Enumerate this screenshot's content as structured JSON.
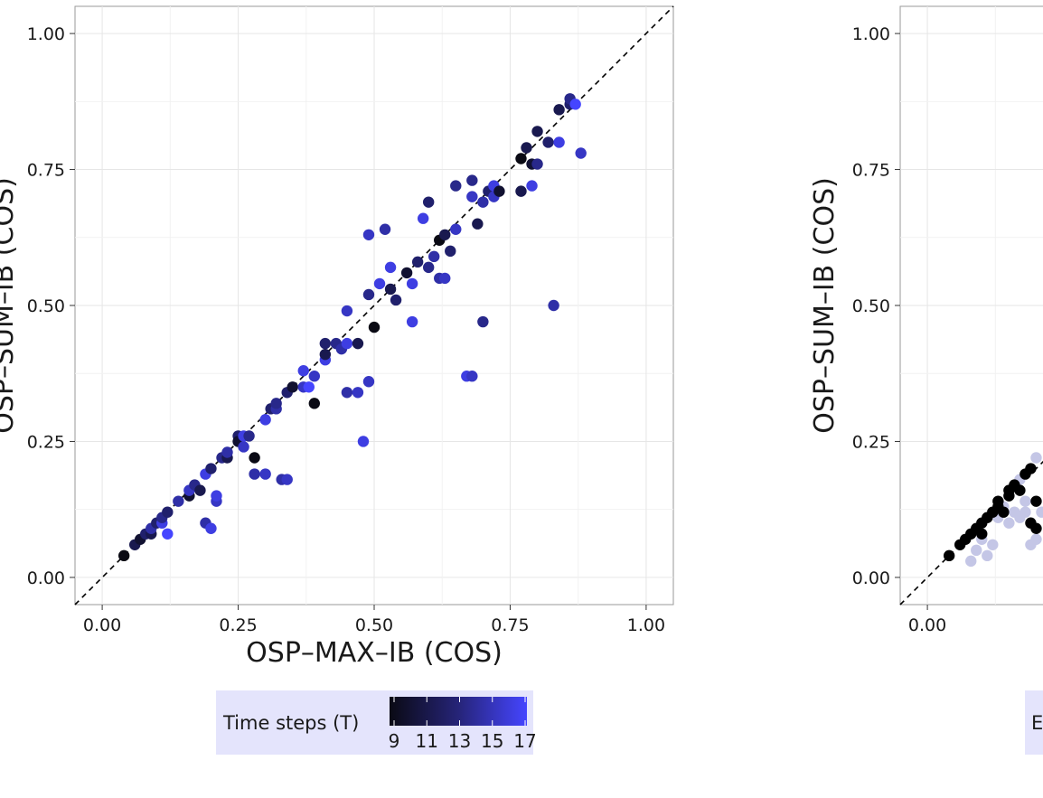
{
  "chart_data": [
    {
      "type": "scatter",
      "xlabel": "OSP–MAX–IB (COS)",
      "ylabel": "OSP–SUM–IB (COS)",
      "xlim": [
        -0.05,
        1.05
      ],
      "ylim": [
        -0.05,
        1.05
      ],
      "xticks": [
        "0.00",
        "0.25",
        "0.50",
        "0.75",
        "1.00"
      ],
      "yticks": [
        "0.00",
        "0.25",
        "0.50",
        "0.75",
        "1.00"
      ],
      "grid": true,
      "reference_line": "y = x (dashed)",
      "legend": {
        "title": "Time steps (T)",
        "placement": "bottom",
        "type": "colorbar",
        "ticks": [
          "9",
          "11",
          "13",
          "15",
          "17"
        ],
        "range": [
          9,
          17
        ],
        "color_low": "#0a0a14",
        "color_high": "#4545ff"
      },
      "points": [
        {
          "x": 0.04,
          "y": 0.04,
          "t": 9
        },
        {
          "x": 0.06,
          "y": 0.06,
          "t": 11
        },
        {
          "x": 0.07,
          "y": 0.07,
          "t": 10
        },
        {
          "x": 0.08,
          "y": 0.08,
          "t": 12
        },
        {
          "x": 0.09,
          "y": 0.08,
          "t": 11
        },
        {
          "x": 0.09,
          "y": 0.09,
          "t": 14
        },
        {
          "x": 0.1,
          "y": 0.1,
          "t": 12
        },
        {
          "x": 0.11,
          "y": 0.1,
          "t": 16
        },
        {
          "x": 0.11,
          "y": 0.11,
          "t": 13
        },
        {
          "x": 0.12,
          "y": 0.08,
          "t": 17
        },
        {
          "x": 0.12,
          "y": 0.12,
          "t": 12
        },
        {
          "x": 0.14,
          "y": 0.14,
          "t": 14
        },
        {
          "x": 0.16,
          "y": 0.15,
          "t": 10
        },
        {
          "x": 0.16,
          "y": 0.16,
          "t": 15
        },
        {
          "x": 0.17,
          "y": 0.17,
          "t": 13
        },
        {
          "x": 0.18,
          "y": 0.16,
          "t": 11
        },
        {
          "x": 0.19,
          "y": 0.1,
          "t": 14
        },
        {
          "x": 0.19,
          "y": 0.19,
          "t": 16
        },
        {
          "x": 0.2,
          "y": 0.09,
          "t": 16
        },
        {
          "x": 0.2,
          "y": 0.2,
          "t": 12
        },
        {
          "x": 0.21,
          "y": 0.14,
          "t": 15
        },
        {
          "x": 0.21,
          "y": 0.15,
          "t": 16
        },
        {
          "x": 0.22,
          "y": 0.22,
          "t": 13
        },
        {
          "x": 0.23,
          "y": 0.22,
          "t": 11
        },
        {
          "x": 0.23,
          "y": 0.23,
          "t": 14
        },
        {
          "x": 0.25,
          "y": 0.26,
          "t": 12
        },
        {
          "x": 0.25,
          "y": 0.25,
          "t": 10
        },
        {
          "x": 0.26,
          "y": 0.24,
          "t": 15
        },
        {
          "x": 0.26,
          "y": 0.26,
          "t": 16
        },
        {
          "x": 0.27,
          "y": 0.26,
          "t": 13
        },
        {
          "x": 0.28,
          "y": 0.22,
          "t": 9
        },
        {
          "x": 0.28,
          "y": 0.19,
          "t": 14
        },
        {
          "x": 0.3,
          "y": 0.19,
          "t": 15
        },
        {
          "x": 0.3,
          "y": 0.29,
          "t": 16
        },
        {
          "x": 0.31,
          "y": 0.31,
          "t": 12
        },
        {
          "x": 0.32,
          "y": 0.31,
          "t": 14
        },
        {
          "x": 0.32,
          "y": 0.32,
          "t": 13
        },
        {
          "x": 0.33,
          "y": 0.18,
          "t": 14
        },
        {
          "x": 0.34,
          "y": 0.18,
          "t": 15
        },
        {
          "x": 0.34,
          "y": 0.34,
          "t": 12
        },
        {
          "x": 0.35,
          "y": 0.35,
          "t": 10
        },
        {
          "x": 0.37,
          "y": 0.35,
          "t": 15
        },
        {
          "x": 0.37,
          "y": 0.38,
          "t": 16
        },
        {
          "x": 0.38,
          "y": 0.35,
          "t": 17
        },
        {
          "x": 0.39,
          "y": 0.32,
          "t": 9
        },
        {
          "x": 0.39,
          "y": 0.37,
          "t": 15
        },
        {
          "x": 0.41,
          "y": 0.4,
          "t": 16
        },
        {
          "x": 0.41,
          "y": 0.41,
          "t": 11
        },
        {
          "x": 0.41,
          "y": 0.43,
          "t": 12
        },
        {
          "x": 0.43,
          "y": 0.43,
          "t": 13
        },
        {
          "x": 0.44,
          "y": 0.42,
          "t": 14
        },
        {
          "x": 0.45,
          "y": 0.43,
          "t": 16
        },
        {
          "x": 0.45,
          "y": 0.34,
          "t": 14
        },
        {
          "x": 0.45,
          "y": 0.49,
          "t": 15
        },
        {
          "x": 0.47,
          "y": 0.43,
          "t": 11
        },
        {
          "x": 0.47,
          "y": 0.34,
          "t": 15
        },
        {
          "x": 0.48,
          "y": 0.25,
          "t": 16
        },
        {
          "x": 0.49,
          "y": 0.36,
          "t": 15
        },
        {
          "x": 0.49,
          "y": 0.52,
          "t": 13
        },
        {
          "x": 0.49,
          "y": 0.63,
          "t": 15
        },
        {
          "x": 0.5,
          "y": 0.46,
          "t": 9
        },
        {
          "x": 0.51,
          "y": 0.54,
          "t": 16
        },
        {
          "x": 0.52,
          "y": 0.64,
          "t": 14
        },
        {
          "x": 0.53,
          "y": 0.57,
          "t": 16
        },
        {
          "x": 0.53,
          "y": 0.53,
          "t": 11
        },
        {
          "x": 0.54,
          "y": 0.51,
          "t": 12
        },
        {
          "x": 0.56,
          "y": 0.56,
          "t": 10
        },
        {
          "x": 0.57,
          "y": 0.54,
          "t": 16
        },
        {
          "x": 0.57,
          "y": 0.47,
          "t": 16
        },
        {
          "x": 0.58,
          "y": 0.58,
          "t": 12
        },
        {
          "x": 0.59,
          "y": 0.66,
          "t": 16
        },
        {
          "x": 0.6,
          "y": 0.69,
          "t": 12
        },
        {
          "x": 0.6,
          "y": 0.57,
          "t": 13
        },
        {
          "x": 0.61,
          "y": 0.59,
          "t": 14
        },
        {
          "x": 0.62,
          "y": 0.55,
          "t": 14
        },
        {
          "x": 0.62,
          "y": 0.62,
          "t": 9
        },
        {
          "x": 0.63,
          "y": 0.63,
          "t": 11
        },
        {
          "x": 0.63,
          "y": 0.55,
          "t": 15
        },
        {
          "x": 0.64,
          "y": 0.6,
          "t": 12
        },
        {
          "x": 0.65,
          "y": 0.64,
          "t": 15
        },
        {
          "x": 0.65,
          "y": 0.72,
          "t": 13
        },
        {
          "x": 0.67,
          "y": 0.37,
          "t": 16
        },
        {
          "x": 0.68,
          "y": 0.37,
          "t": 15
        },
        {
          "x": 0.68,
          "y": 0.7,
          "t": 15
        },
        {
          "x": 0.68,
          "y": 0.73,
          "t": 13
        },
        {
          "x": 0.69,
          "y": 0.65,
          "t": 11
        },
        {
          "x": 0.7,
          "y": 0.69,
          "t": 14
        },
        {
          "x": 0.7,
          "y": 0.47,
          "t": 13
        },
        {
          "x": 0.71,
          "y": 0.71,
          "t": 12
        },
        {
          "x": 0.72,
          "y": 0.7,
          "t": 15
        },
        {
          "x": 0.72,
          "y": 0.72,
          "t": 16
        },
        {
          "x": 0.73,
          "y": 0.71,
          "t": 10
        },
        {
          "x": 0.77,
          "y": 0.71,
          "t": 11
        },
        {
          "x": 0.77,
          "y": 0.77,
          "t": 9
        },
        {
          "x": 0.78,
          "y": 0.79,
          "t": 11
        },
        {
          "x": 0.79,
          "y": 0.76,
          "t": 10
        },
        {
          "x": 0.79,
          "y": 0.72,
          "t": 16
        },
        {
          "x": 0.8,
          "y": 0.76,
          "t": 13
        },
        {
          "x": 0.8,
          "y": 0.82,
          "t": 11
        },
        {
          "x": 0.82,
          "y": 0.8,
          "t": 12
        },
        {
          "x": 0.83,
          "y": 0.5,
          "t": 14
        },
        {
          "x": 0.84,
          "y": 0.86,
          "t": 11
        },
        {
          "x": 0.84,
          "y": 0.8,
          "t": 16
        },
        {
          "x": 0.86,
          "y": 0.87,
          "t": 12
        },
        {
          "x": 0.86,
          "y": 0.88,
          "t": 13
        },
        {
          "x": 0.87,
          "y": 0.87,
          "t": 17
        },
        {
          "x": 0.88,
          "y": 0.78,
          "t": 15
        }
      ]
    },
    {
      "type": "scatter",
      "ylabel": "OSP–SUM–IB (COS)",
      "xlim": [
        -0.05,
        1.05
      ],
      "ylim": [
        -0.05,
        1.05
      ],
      "xticks": [
        "0.00"
      ],
      "yticks": [
        "0.00",
        "0.25",
        "0.50",
        "0.75",
        "1.00"
      ],
      "grid": true,
      "reference_line": "y = x (dashed)",
      "legend": {
        "placement": "bottom",
        "visible_label": "E"
      },
      "points_dark": [
        {
          "x": 0.04,
          "y": 0.04
        },
        {
          "x": 0.06,
          "y": 0.06
        },
        {
          "x": 0.07,
          "y": 0.07
        },
        {
          "x": 0.08,
          "y": 0.08
        },
        {
          "x": 0.09,
          "y": 0.09
        },
        {
          "x": 0.1,
          "y": 0.1
        },
        {
          "x": 0.1,
          "y": 0.08
        },
        {
          "x": 0.11,
          "y": 0.11
        },
        {
          "x": 0.12,
          "y": 0.12
        },
        {
          "x": 0.13,
          "y": 0.13
        },
        {
          "x": 0.13,
          "y": 0.14
        },
        {
          "x": 0.14,
          "y": 0.12
        },
        {
          "x": 0.15,
          "y": 0.15
        },
        {
          "x": 0.15,
          "y": 0.16
        },
        {
          "x": 0.16,
          "y": 0.17
        },
        {
          "x": 0.17,
          "y": 0.16
        },
        {
          "x": 0.18,
          "y": 0.19
        },
        {
          "x": 0.19,
          "y": 0.2
        },
        {
          "x": 0.2,
          "y": 0.14
        },
        {
          "x": 0.19,
          "y": 0.1
        },
        {
          "x": 0.2,
          "y": 0.09
        }
      ],
      "points_light": [
        {
          "x": 0.08,
          "y": 0.03
        },
        {
          "x": 0.09,
          "y": 0.05
        },
        {
          "x": 0.1,
          "y": 0.07
        },
        {
          "x": 0.11,
          "y": 0.04
        },
        {
          "x": 0.12,
          "y": 0.06
        },
        {
          "x": 0.13,
          "y": 0.11
        },
        {
          "x": 0.14,
          "y": 0.13
        },
        {
          "x": 0.15,
          "y": 0.1
        },
        {
          "x": 0.16,
          "y": 0.12
        },
        {
          "x": 0.17,
          "y": 0.11
        },
        {
          "x": 0.17,
          "y": 0.18
        },
        {
          "x": 0.18,
          "y": 0.12
        },
        {
          "x": 0.19,
          "y": 0.06
        },
        {
          "x": 0.2,
          "y": 0.07
        },
        {
          "x": 0.2,
          "y": 0.22
        },
        {
          "x": 0.21,
          "y": 0.12
        },
        {
          "x": 0.18,
          "y": 0.14
        }
      ],
      "color_dark": "#000000",
      "color_light": "#c4c6e6"
    }
  ]
}
